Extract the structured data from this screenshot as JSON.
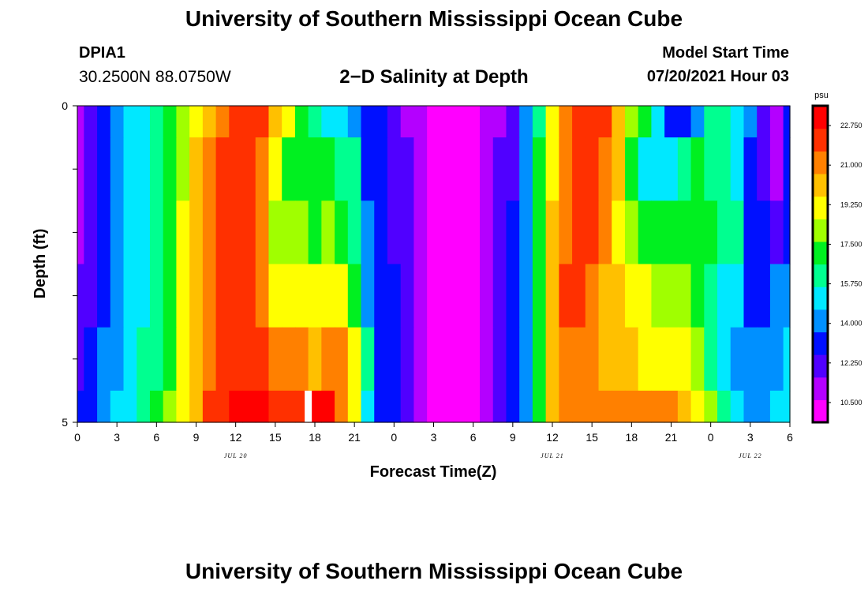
{
  "header": {
    "title": "University of Southern Mississippi Ocean Cube",
    "station": "DPIA1",
    "coords": "30.2500N  88.0750W",
    "subtitle": "2−D Salinity at Depth",
    "model_start_label": "Model Start Time",
    "model_start_value": "07/20/2021 Hour 03"
  },
  "footer": {
    "title": "University of Southern Mississippi Ocean Cube"
  },
  "chart_data": {
    "type": "heatmap",
    "title": "2-D Salinity at Depth",
    "xlabel": "Forecast Time(Z)",
    "ylabel": "Depth (ft)",
    "x_start_hour": 0,
    "x_end_hour": 54,
    "x_step_hours": 1,
    "x_ticks": [
      {
        "hour": 0,
        "label": "0"
      },
      {
        "hour": 3,
        "label": "3"
      },
      {
        "hour": 6,
        "label": "6"
      },
      {
        "hour": 9,
        "label": "9"
      },
      {
        "hour": 12,
        "label": "12"
      },
      {
        "hour": 15,
        "label": "15"
      },
      {
        "hour": 18,
        "label": "18"
      },
      {
        "hour": 21,
        "label": "21"
      },
      {
        "hour": 24,
        "label": "0"
      },
      {
        "hour": 27,
        "label": "3"
      },
      {
        "hour": 30,
        "label": "6"
      },
      {
        "hour": 33,
        "label": "9"
      },
      {
        "hour": 36,
        "label": "12"
      },
      {
        "hour": 39,
        "label": "15"
      },
      {
        "hour": 42,
        "label": "18"
      },
      {
        "hour": 45,
        "label": "21"
      },
      {
        "hour": 48,
        "label": "0"
      },
      {
        "hour": 51,
        "label": "3"
      },
      {
        "hour": 54,
        "label": "6"
      }
    ],
    "date_labels": [
      {
        "hour": 12,
        "label": "JUL 20"
      },
      {
        "hour": 36,
        "label": "JUL 21"
      },
      {
        "hour": 51,
        "label": "JUL 22"
      }
    ],
    "y_range": [
      0,
      5
    ],
    "y_tick_values": [
      0,
      1,
      2,
      3,
      4,
      5
    ],
    "y_tick_labels": [
      {
        "depth": 0,
        "label": "0"
      },
      {
        "depth": 5,
        "label": "5"
      }
    ],
    "colorbar": {
      "unit": "psu",
      "min": 9.625,
      "max": 23.625,
      "labels": [
        "22.750",
        "21.000",
        "19.250",
        "17.500",
        "15.750",
        "14.000",
        "12.250",
        "10.500"
      ],
      "label_values": [
        22.75,
        21.0,
        19.25,
        17.5,
        15.75,
        14.0,
        12.25,
        10.5
      ],
      "colors": [
        "#ff00ff",
        "#b400ff",
        "#5000ff",
        "#0010ff",
        "#0090ff",
        "#00e8ff",
        "#00ff90",
        "#00f020",
        "#a0ff00",
        "#ffff00",
        "#ffc000",
        "#ff8000",
        "#ff3000",
        "#ff0000"
      ]
    },
    "depth_layers": [
      {
        "depth_range": [
          0.0,
          0.5
        ],
        "values": [
          11.2,
          11.9,
          13.0,
          14.0,
          14.8,
          15.2,
          15.8,
          16.9,
          18.3,
          19.5,
          20.5,
          21.5,
          22.0,
          22.3,
          22.0,
          20.4,
          18.8,
          17.0,
          16.3,
          15.5,
          14.8,
          14.0,
          13.4,
          12.9,
          12.3,
          11.6,
          10.8,
          10.2,
          10.0,
          10.0,
          10.2,
          10.8,
          11.6,
          12.4,
          14.0,
          16.5,
          19.5,
          21.5,
          22.3,
          22.4,
          21.8,
          19.8,
          18.0,
          17.0,
          15.0,
          13.3,
          13.2,
          14.2,
          15.9,
          15.7,
          15.2,
          13.9,
          12.5,
          11.4,
          12.8
        ]
      },
      {
        "depth_range": [
          0.5,
          1.5
        ],
        "values": [
          11.3,
          12.0,
          13.0,
          14.0,
          14.8,
          15.3,
          15.9,
          17.1,
          18.5,
          19.8,
          20.8,
          21.7,
          22.1,
          22.2,
          21.5,
          19.0,
          17.0,
          16.8,
          16.9,
          16.7,
          16.2,
          15.8,
          13.6,
          13.0,
          12.4,
          11.7,
          10.9,
          10.3,
          10.0,
          10.0,
          10.2,
          10.9,
          11.7,
          12.6,
          14.2,
          16.7,
          19.6,
          21.5,
          22.1,
          22.2,
          21.3,
          19.7,
          17.5,
          15.6,
          14.8,
          15.0,
          16.6,
          17.0,
          16.3,
          15.7,
          15.2,
          13.5,
          12.2,
          11.6,
          12.9
        ]
      },
      {
        "depth_range": [
          1.5,
          2.5
        ],
        "values": [
          11.3,
          12.0,
          13.1,
          14.1,
          14.9,
          15.4,
          16.0,
          17.2,
          18.7,
          20.0,
          21.0,
          21.8,
          22.2,
          22.1,
          20.8,
          18.6,
          17.7,
          17.7,
          17.6,
          17.7,
          17.6,
          16.1,
          13.7,
          13.1,
          12.5,
          11.8,
          11.0,
          10.3,
          10.0,
          10.0,
          10.2,
          10.9,
          11.8,
          12.7,
          14.3,
          16.8,
          19.8,
          21.6,
          22.0,
          21.9,
          20.9,
          19.6,
          18.0,
          17.3,
          17.0,
          16.9,
          17.6,
          17.4,
          16.7,
          16.2,
          15.8,
          13.6,
          12.8,
          12.4,
          13.1
        ]
      },
      {
        "depth_range": [
          2.5,
          3.5
        ],
        "values": [
          11.8,
          12.3,
          13.3,
          14.3,
          15.1,
          15.6,
          16.2,
          17.4,
          18.9,
          20.2,
          21.3,
          22.0,
          22.4,
          22.3,
          21.2,
          19.5,
          19.2,
          19.0,
          19.1,
          19.2,
          19.4,
          17.6,
          13.9,
          13.3,
          12.7,
          11.9,
          11.1,
          10.4,
          10.0,
          10.0,
          10.3,
          11.0,
          11.9,
          12.8,
          14.4,
          17.0,
          20.1,
          21.8,
          21.8,
          21.5,
          20.4,
          19.7,
          19.3,
          18.9,
          18.6,
          18.5,
          18.6,
          17.5,
          15.9,
          15.0,
          14.7,
          13.5,
          13.0,
          13.8,
          14.6
        ]
      },
      {
        "depth_range": [
          3.5,
          4.5
        ],
        "values": [
          12.6,
          13.0,
          13.7,
          14.5,
          15.3,
          15.8,
          16.4,
          17.6,
          19.1,
          20.4,
          21.5,
          22.2,
          22.5,
          22.5,
          21.8,
          21.1,
          20.8,
          20.7,
          20.6,
          20.7,
          21.0,
          18.8,
          16.1,
          13.5,
          12.8,
          12.0,
          11.2,
          10.4,
          10.0,
          10.0,
          10.3,
          11.1,
          12.0,
          12.9,
          14.5,
          17.1,
          20.2,
          21.6,
          21.5,
          21.0,
          20.2,
          19.8,
          19.7,
          19.6,
          19.6,
          19.5,
          19.4,
          18.4,
          16.6,
          15.0,
          14.2,
          13.8,
          13.7,
          14.1,
          15.0
        ]
      },
      {
        "depth_range": [
          4.5,
          5.0
        ],
        "values": [
          13.3,
          13.6,
          14.1,
          14.9,
          15.6,
          16.1,
          16.7,
          17.9,
          19.3,
          20.6,
          21.7,
          22.4,
          22.8,
          22.8,
          22.7,
          22.3,
          22.1,
          22.4,
          23.0,
          22.9,
          21.3,
          18.9,
          15.6,
          13.6,
          12.9,
          12.1,
          11.3,
          10.5,
          10.0,
          10.0,
          10.3,
          11.1,
          12.0,
          13.0,
          14.6,
          17.3,
          20.4,
          21.2,
          21.0,
          20.9,
          20.9,
          20.8,
          20.8,
          20.8,
          20.7,
          20.7,
          20.6,
          19.4,
          17.8,
          16.1,
          14.8,
          14.5,
          14.3,
          14.8,
          15.5
        ]
      }
    ]
  }
}
